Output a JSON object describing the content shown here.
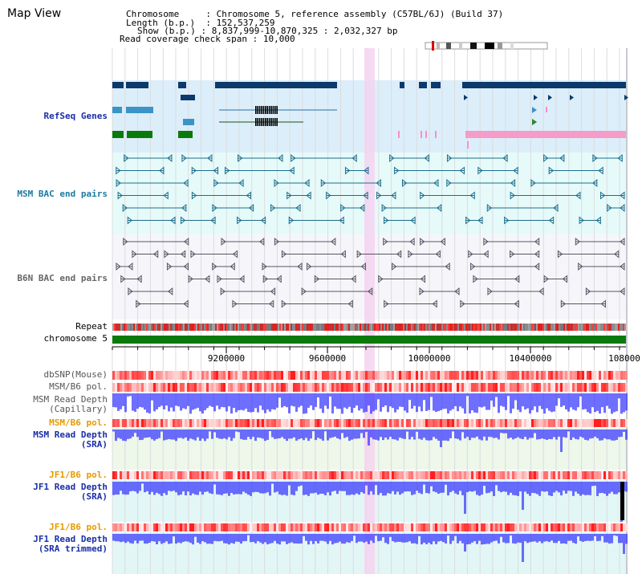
{
  "window": {
    "title": "Map View"
  },
  "header": {
    "chromosome_label": "Chromosome",
    "chromosome_value": "Chromosome 5, reference assembly (C57BL/6J) (Build 37)",
    "length_label": "Length (b.p.)",
    "length_value": "152,537,259",
    "show_label": "Show (b.p.)",
    "show_value": "8,837,999-10,870,325 : 2,032,327 bp",
    "coverage_label": "Read coverage check span",
    "coverage_value": "10,000"
  },
  "tracks": {
    "refseq": "RefSeq Genes",
    "msm_bac": "MSM BAC end pairs",
    "b6n_bac": "B6N BAC end pairs",
    "repeat": "Repeat",
    "chromosome": "chromosome 5",
    "dbsnp": "dbSNP(Mouse)",
    "msm_b6_pol": "MSM/B6 pol.",
    "msm_depth_cap": "MSM Read Depth\n(Capillary)",
    "msm_b6_pol2": "MSM/B6 pol.",
    "msm_depth_sra": "MSM Read Depth\n(SRA)",
    "jf1_b6_pol": "JF1/B6 pol.",
    "jf1_depth_sra": "JF1 Read Depth\n(SRA)",
    "jf1_b6_pol2": "JF1/B6 pol.",
    "jf1_depth_trim": "JF1 Read Depth\n(SRA trimmed)"
  },
  "axis": {
    "ticks": [
      "9200000",
      "9600000",
      "10000000",
      "10400000",
      "108000"
    ]
  },
  "colors": {
    "refseq_bg": "#dceefa",
    "msm_bg": "#e6fafa",
    "gene_dark": "#0b3a6b",
    "highlight": "#f4d4f0",
    "depth_blue": "#3030ff",
    "pol_orange": "#e69a00"
  }
}
